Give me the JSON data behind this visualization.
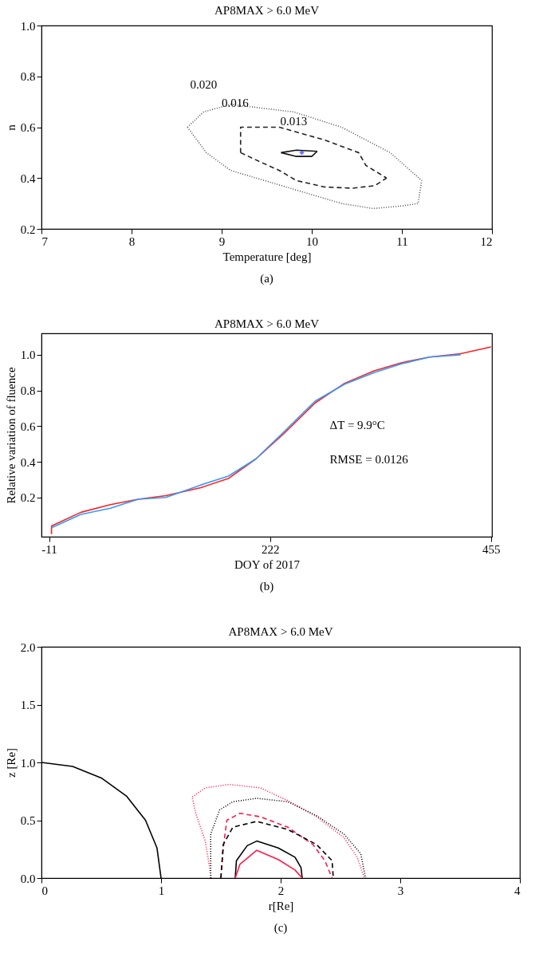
{
  "chart_data": [
    {
      "type": "line",
      "title": "AP8MAX > 6.0 MeV",
      "xlabel": "Temperature [deg]",
      "ylabel": "n",
      "xlim": [
        7,
        12
      ],
      "ylim": [
        0.2,
        1.0
      ],
      "xticks": [
        7,
        8,
        9,
        10,
        11,
        12
      ],
      "yticks": [
        0.2,
        0.4,
        0.6,
        0.8,
        {
          "value": 1,
          "label": "1.0"
        }
      ],
      "series": [
        {
          "color": "#555555",
          "line_style": "dotted",
          "x": [
            8.62,
            8.8,
            9.1,
            9.8,
            10.33,
            10.87,
            11.22
          ],
          "values": [
            0.6,
            0.66,
            0.69,
            0.66,
            0.6,
            0.5,
            0.39
          ]
        },
        {
          "color": "#555555",
          "line_style": "dotted",
          "x": [
            8.62,
            8.83,
            9.1,
            9.76,
            10.33,
            10.68,
            10.99,
            11.18,
            11.22
          ],
          "values": [
            0.6,
            0.5,
            0.43,
            0.36,
            0.3,
            0.28,
            0.29,
            0.3,
            0.39
          ]
        },
        {
          "color": "#222222",
          "line_style": "dashed",
          "x": [
            9.21,
            9.21,
            9.64,
            10.14,
            10.52,
            10.6,
            10.83
          ],
          "values": [
            0.5,
            0.6,
            0.6,
            0.55,
            0.5,
            0.45,
            0.4
          ]
        },
        {
          "color": "#222222",
          "line_style": "dashed",
          "x": [
            9.21,
            9.45,
            9.64,
            9.83,
            10.14,
            10.45,
            10.7,
            10.83
          ],
          "values": [
            0.5,
            0.46,
            0.43,
            0.39,
            0.365,
            0.36,
            0.37,
            0.4
          ]
        },
        {
          "color": "#111111",
          "line_style": "solid",
          "x": [
            9.66,
            9.83,
            10.06
          ],
          "values": [
            0.5,
            0.51,
            0.505
          ]
        },
        {
          "color": "#111111",
          "line_style": "solid",
          "x": [
            9.66,
            9.83,
            10.0,
            10.06
          ],
          "values": [
            0.5,
            0.485,
            0.485,
            0.505
          ]
        },
        {
          "type": "scatter",
          "marker": "cross",
          "color": "#3333ff",
          "x": [
            9.89
          ],
          "values": [
            0.5
          ]
        }
      ],
      "annotations": [
        "0.020",
        "0.016",
        "0.013",
        "(a)"
      ]
    },
    {
      "type": "line",
      "title": "AP8MAX > 6.0 MeV",
      "xlabel": "DOY of 2017",
      "ylabel": "Relative variation of fluence",
      "xlim": [
        -19,
        456
      ],
      "ylim": [
        -0.02,
        1.12
      ],
      "xticks": [
        -11,
        222,
        455
      ],
      "yticks": [
        0.2,
        0.4,
        0.6,
        0.8,
        {
          "value": 1,
          "label": "1.0"
        }
      ],
      "series": [
        {
          "color": "#ff2020",
          "line_style": "solid",
          "x": [
            -8.4,
            -8.4,
            22.6,
            53.7,
            83,
            112,
            149,
            178,
            207,
            237,
            269.5,
            300.6,
            331.7,
            361,
            390,
            423,
            455
          ],
          "values": [
            -0.005,
            0.04,
            0.117,
            0.16,
            0.19,
            0.21,
            0.255,
            0.306,
            0.416,
            0.56,
            0.73,
            0.84,
            0.91,
            0.956,
            0.987,
            1.006,
            1.044
          ]
        },
        {
          "color": "#3399ff",
          "line_style": "solid",
          "x": [
            -8.4,
            22.6,
            53.7,
            83,
            112,
            149,
            178,
            207,
            237,
            269.5,
            300.6,
            331.7,
            361,
            390,
            423
          ],
          "values": [
            0.03,
            0.105,
            0.14,
            0.19,
            0.2,
            0.27,
            0.32,
            0.416,
            0.57,
            0.74,
            0.835,
            0.9,
            0.95,
            0.987,
            1.0
          ]
        }
      ],
      "annotations": [
        "ΔT = 9.9°C",
        "RMSE = 0.0126",
        "(b)"
      ]
    },
    {
      "type": "line",
      "title": "AP8MAX > 6.0 MeV",
      "xlabel": "r[Re]",
      "ylabel": "z [Re]",
      "xlim": [
        0,
        4
      ],
      "ylim": [
        0,
        2
      ],
      "xticks": [
        0,
        1,
        2,
        3,
        4
      ],
      "yticks": [
        {
          "value": 0,
          "label": "0.0"
        },
        0.5,
        {
          "value": 1,
          "label": "1.0"
        },
        1.5,
        {
          "value": 2,
          "label": "2.0"
        }
      ],
      "series": [
        {
          "color": "#000000",
          "line_style": "solid",
          "x": [
            0,
            0.26,
            0.5,
            0.71,
            0.87,
            0.966,
            1
          ],
          "values": [
            1,
            0.966,
            0.866,
            0.71,
            0.5,
            0.26,
            0
          ]
        },
        {
          "color": "#ff1a4a",
          "line_style": "dotted",
          "x": [
            1.42,
            1.37,
            1.29,
            1.26,
            1.37,
            1.57,
            1.83,
            2.06,
            2.3,
            2.53,
            2.64,
            2.7
          ],
          "values": [
            0,
            0.32,
            0.56,
            0.7,
            0.78,
            0.81,
            0.78,
            0.67,
            0.53,
            0.35,
            0.18,
            0
          ]
        },
        {
          "color": "#000000",
          "line_style": "dotted",
          "x": [
            1.415,
            1.415,
            1.49,
            1.6,
            1.8,
            2.06,
            2.3,
            2.53,
            2.67,
            2.71
          ],
          "values": [
            0,
            0.38,
            0.59,
            0.66,
            0.69,
            0.66,
            0.54,
            0.38,
            0.21,
            0
          ]
        },
        {
          "color": "#ff1a4a",
          "line_style": "dashed",
          "x": [
            1.5,
            1.52,
            1.55,
            1.66,
            1.83,
            2.06,
            2.27,
            2.37,
            2.43
          ],
          "values": [
            0,
            0.26,
            0.5,
            0.56,
            0.53,
            0.44,
            0.29,
            0.15,
            0
          ]
        },
        {
          "color": "#000000",
          "line_style": "dashed",
          "x": [
            1.5,
            1.52,
            1.6,
            1.8,
            2.06,
            2.3,
            2.43,
            2.44
          ],
          "values": [
            0,
            0.29,
            0.44,
            0.49,
            0.42,
            0.29,
            0.15,
            0
          ]
        },
        {
          "color": "#000000",
          "line_style": "solid",
          "x": [
            1.62,
            1.63,
            1.72,
            1.8,
            1.98,
            2.12,
            2.17,
            2.18
          ],
          "values": [
            0,
            0.15,
            0.28,
            0.32,
            0.26,
            0.18,
            0.09,
            0
          ]
        },
        {
          "color": "#ff1a4a",
          "line_style": "solid",
          "x": [
            1.62,
            1.66,
            1.8,
            1.98,
            2.12,
            2.18
          ],
          "values": [
            0,
            0.12,
            0.24,
            0.16,
            0.07,
            0
          ]
        }
      ],
      "annotations": [
        "(c)"
      ]
    }
  ]
}
